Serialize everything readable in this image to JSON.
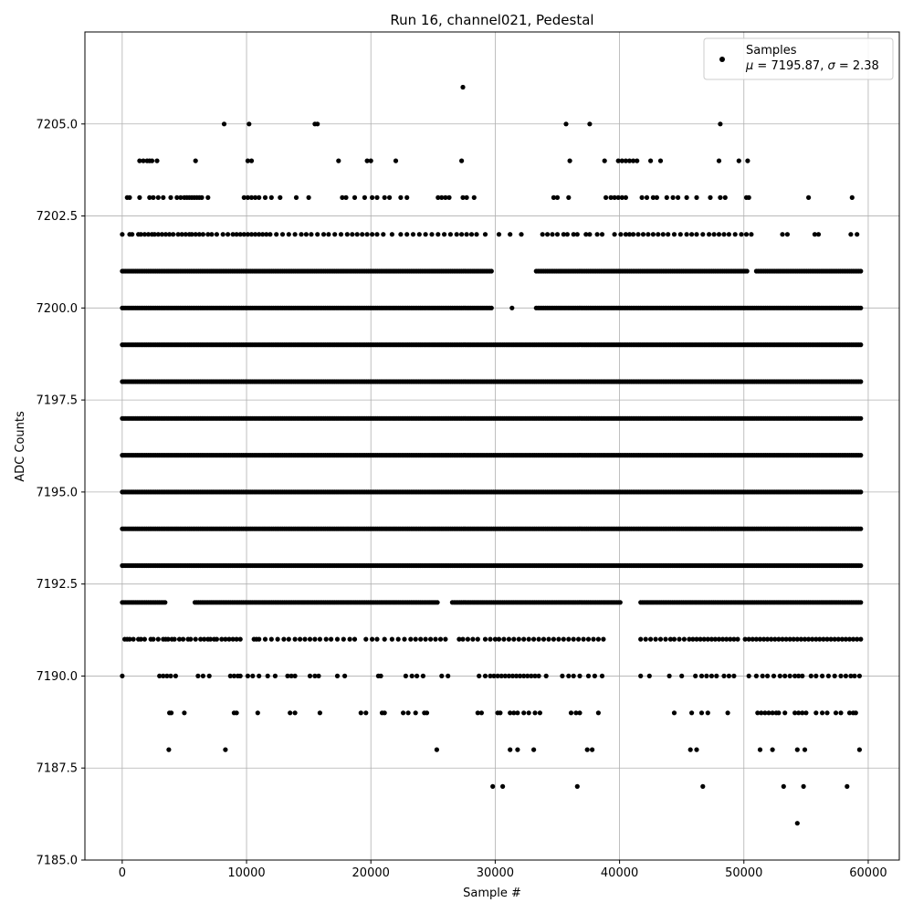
{
  "chart_data": {
    "type": "scatter",
    "title": "Run 16, channel021, Pedestal",
    "xlabel": "Sample #",
    "ylabel": "ADC Counts",
    "xlim": [
      -3000,
      62500
    ],
    "ylim": [
      7185.0,
      7207.5
    ],
    "xticks": [
      0,
      10000,
      20000,
      30000,
      40000,
      50000,
      60000
    ],
    "xtick_labels": [
      "0",
      "10000",
      "20000",
      "30000",
      "40000",
      "50000",
      "60000"
    ],
    "yticks": [
      7185.0,
      7187.5,
      7190.0,
      7192.5,
      7195.0,
      7197.5,
      7200.0,
      7202.5,
      7205.0
    ],
    "ytick_labels": [
      "7185.0",
      "7187.5",
      "7190.0",
      "7192.5",
      "7195.0",
      "7197.5",
      "7200.0",
      "7202.5",
      "7205.0"
    ],
    "grid": true,
    "legend": {
      "placement": "top-right",
      "entries": [
        {
          "label": "Samples",
          "sublabel_parts": [
            "μ",
            " = 7195.87, ",
            "σ",
            " = 2.38"
          ],
          "marker_color": "#000000"
        }
      ]
    },
    "series": [
      {
        "name": "Samples",
        "color": "#000000",
        "x_range": [
          0,
          59500
        ],
        "stats": {
          "mean": 7195.87,
          "sigma": 2.38
        },
        "dense_levels": [
          {
            "y": 7193,
            "x_range": [
              0,
              59500
            ]
          },
          {
            "y": 7194,
            "x_range": [
              0,
              59500
            ]
          },
          {
            "y": 7195,
            "x_range": [
              0,
              59500
            ]
          },
          {
            "y": 7196,
            "x_range": [
              0,
              59500
            ]
          },
          {
            "y": 7197,
            "x_range": [
              0,
              59500
            ]
          },
          {
            "y": 7198,
            "x_range": [
              0,
              59500
            ]
          },
          {
            "y": 7199,
            "x_range": [
              0,
              59500
            ]
          }
        ],
        "semi_levels": [
          {
            "y": 7192,
            "x_range": [
              0,
              59500
            ],
            "gaps": [
              [
                3600,
                5800
              ],
              [
                25500,
                26500
              ],
              [
                40200,
                41600
              ]
            ]
          },
          {
            "y": 7200,
            "x_range": [
              0,
              59500
            ],
            "gaps": [
              [
                29800,
                31300
              ],
              [
                31500,
                33200
              ]
            ]
          },
          {
            "y": 7201,
            "x_range": [
              0,
              59500
            ],
            "gaps": [
              [
                29800,
                33200
              ],
              [
                50300,
                50900
              ]
            ]
          }
        ],
        "sparse_levels": [
          {
            "y": 7191,
            "x": [
              200,
              400,
              600,
              900,
              1300,
              1500,
              1800,
              2300,
              2500,
              2900,
              3300,
              3500,
              3700,
              4000,
              4200,
              4600,
              4900,
              5300,
              5500,
              5900,
              6300,
              6600,
              6900,
              7100,
              7400,
              7600,
              8000,
              8300,
              8600,
              8900,
              9200,
              9500,
              10600,
              10800,
              11000,
              11500,
              12000,
              12500,
              13000,
              13400,
              13900,
              14300,
              14700,
              15100,
              15500,
              15900,
              16400,
              16800,
              17300,
              17800,
              18300,
              18700,
              19600,
              20100,
              20500,
              21100,
              21700,
              22200,
              22700,
              23200,
              23600,
              24000,
              24400,
              24800,
              25200,
              25600,
              26000,
              27100,
              27400,
              27800,
              28200,
              28600,
              29200,
              29600,
              30000,
              30300,
              30700,
              31100,
              31500,
              31900,
              32300,
              32700,
              33100,
              33500,
              33900,
              34300,
              34700,
              35100,
              35500,
              35900,
              36300,
              36700,
              37100,
              37500,
              37900,
              38300,
              38700,
              41700,
              42100,
              42500,
              42900,
              43300,
              43700,
              44100,
              44400,
              44800,
              45200,
              45600,
              45900,
              46200,
              46500,
              46800,
              47100,
              47400,
              47700,
              48000,
              48300,
              48600,
              48900,
              49200,
              49500,
              50100,
              50400,
              50700,
              51000,
              51300,
              51600,
              51900,
              52200,
              52500,
              52800,
              53100,
              53400,
              53700,
              54000,
              54300,
              54600,
              54900,
              55200,
              55500,
              55800,
              56100,
              56400,
              56700,
              57000,
              57300,
              57600,
              57900,
              58200,
              58500,
              58800,
              59100,
              59400
            ]
          },
          {
            "y": 7190,
            "x": [
              0,
              3000,
              3300,
              3600,
              3900,
              4300,
              6100,
              6500,
              7000,
              8700,
              9000,
              9300,
              9500,
              10100,
              10500,
              11000,
              11700,
              12300,
              13300,
              13600,
              13900,
              15100,
              15500,
              15800,
              17300,
              17900,
              20600,
              20800,
              22800,
              23300,
              23700,
              24200,
              25700,
              26200,
              28700,
              29200,
              29600,
              29900,
              30200,
              30500,
              30800,
              31100,
              31400,
              31700,
              32000,
              32300,
              32600,
              32900,
              33200,
              33500,
              34100,
              35400,
              35900,
              36300,
              36800,
              37500,
              38000,
              38600,
              41700,
              42400,
              44000,
              45000,
              46100,
              46600,
              47000,
              47400,
              47800,
              48400,
              48800,
              49200,
              50400,
              51000,
              51500,
              51900,
              52400,
              52900,
              53300,
              53700,
              54100,
              54400,
              54700,
              55400,
              55800,
              56300,
              56800,
              57300,
              57800,
              58200,
              58600,
              58900,
              59300
            ]
          },
          {
            "y": 7189,
            "x": [
              3800,
              3950,
              5000,
              9000,
              9200,
              10900,
              13500,
              13900,
              15900,
              19200,
              19600,
              20900,
              21100,
              22600,
              23000,
              23600,
              24300,
              24500,
              28600,
              28900,
              30200,
              30400,
              31200,
              31500,
              31800,
              32300,
              32700,
              33200,
              33600,
              36100,
              36500,
              36800,
              38300,
              44400,
              45800,
              46600,
              47100,
              48700,
              51100,
              51400,
              51700,
              52000,
              52300,
              52600,
              52800,
              53300,
              54100,
              54400,
              54700,
              55000,
              55800,
              56300,
              56700,
              57400,
              57800,
              58500,
              58800,
              59000
            ]
          },
          {
            "y": 7188,
            "x": [
              3750,
              8300,
              25300,
              31200,
              31800,
              33100,
              37400,
              37800,
              45700,
              46200,
              51300,
              52300,
              54300,
              54900,
              59300
            ]
          },
          {
            "y": 7187,
            "x": [
              29800,
              30600,
              36600,
              46700,
              53200,
              54800,
              58300
            ]
          },
          {
            "y": 7186,
            "x": [
              54300
            ]
          },
          {
            "y": 7202,
            "x": [
              0,
              600,
              800,
              1300,
              1500,
              1800,
              2100,
              2400,
              2600,
              2900,
              3200,
              3500,
              3800,
              4100,
              4500,
              4800,
              5100,
              5400,
              5600,
              5900,
              6200,
              6500,
              6900,
              7200,
              7600,
              8100,
              8500,
              8900,
              9200,
              9500,
              9800,
              10100,
              10400,
              10700,
              11000,
              11300,
              11600,
              11900,
              12400,
              12900,
              13400,
              13900,
              14400,
              14800,
              15200,
              15700,
              16200,
              16600,
              17100,
              17600,
              18100,
              18500,
              18900,
              19300,
              19700,
              20100,
              20500,
              21000,
              21700,
              22400,
              22900,
              23400,
              23900,
              24400,
              24900,
              25400,
              25900,
              26400,
              26900,
              27300,
              27700,
              28100,
              28500,
              29200,
              30300,
              31200,
              32100,
              33800,
              34200,
              34600,
              35000,
              35500,
              35800,
              36300,
              36600,
              37300,
              37600,
              38200,
              38600,
              39600,
              40100,
              40500,
              40800,
              41100,
              41500,
              41900,
              42300,
              42700,
              43100,
              43500,
              43900,
              44400,
              44900,
              45400,
              45800,
              46200,
              46700,
              47200,
              47600,
              48000,
              48400,
              48800,
              49300,
              49800,
              50200,
              50600,
              53100,
              53500,
              55700,
              56000,
              58600,
              59100
            ]
          },
          {
            "y": 7203,
            "x": [
              400,
              600,
              1400,
              2200,
              2500,
              2900,
              3300,
              3900,
              4400,
              4700,
              5000,
              5200,
              5400,
              5600,
              5800,
              6000,
              6200,
              6400,
              6900,
              9800,
              10100,
              10400,
              10700,
              11000,
              11500,
              12000,
              12700,
              14000,
              15000,
              17700,
              18000,
              18700,
              19500,
              20100,
              20500,
              21100,
              21500,
              22400,
              22900,
              25400,
              25700,
              26000,
              26300,
              27400,
              27700,
              28300,
              34700,
              35000,
              35900,
              38900,
              39300,
              39600,
              39900,
              40200,
              40500,
              41800,
              42200,
              42700,
              43000,
              43800,
              44300,
              44700,
              45400,
              46200,
              47300,
              48100,
              48500,
              50200,
              50400,
              55200,
              58700
            ]
          },
          {
            "y": 7204,
            "x": [
              1400,
              1700,
              2000,
              2200,
              2400,
              2800,
              5900,
              10100,
              10400,
              17400,
              19700,
              20000,
              22000,
              27300,
              36000,
              38800,
              39900,
              40200,
              40500,
              40800,
              41100,
              41400,
              42500,
              43300,
              48000,
              49600,
              50300
            ]
          },
          {
            "y": 7205,
            "x": [
              8200,
              10200,
              15500,
              15700,
              35700,
              37600,
              48100
            ]
          },
          {
            "y": 7206,
            "x": [
              27400
            ]
          }
        ]
      }
    ]
  }
}
